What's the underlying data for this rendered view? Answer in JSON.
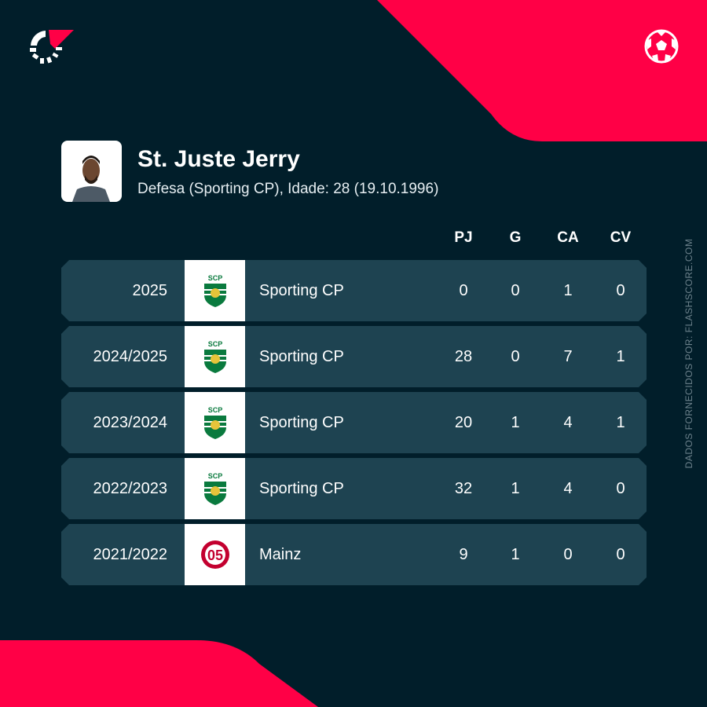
{
  "colors": {
    "background": "#011e2a",
    "accent": "#ff0046",
    "row": "#1e4351"
  },
  "icons": {
    "logo": "flashscore-logo",
    "sport": "football-icon"
  },
  "player": {
    "name": "St. Juste Jerry",
    "details": "Defesa (Sporting CP), Idade: 28 (19.10.1996)"
  },
  "table": {
    "headers": [
      "PJ",
      "G",
      "CA",
      "CV"
    ],
    "rows": [
      {
        "season": "2025",
        "team": "Sporting CP",
        "crest": "sporting-cp-crest",
        "pj": "0",
        "g": "0",
        "ca": "1",
        "cv": "0"
      },
      {
        "season": "2024/2025",
        "team": "Sporting CP",
        "crest": "sporting-cp-crest",
        "pj": "28",
        "g": "0",
        "ca": "7",
        "cv": "1"
      },
      {
        "season": "2023/2024",
        "team": "Sporting CP",
        "crest": "sporting-cp-crest",
        "pj": "20",
        "g": "1",
        "ca": "4",
        "cv": "1"
      },
      {
        "season": "2022/2023",
        "team": "Sporting CP",
        "crest": "sporting-cp-crest",
        "pj": "32",
        "g": "1",
        "ca": "4",
        "cv": "0"
      },
      {
        "season": "2021/2022",
        "team": "Mainz",
        "crest": "mainz-crest",
        "pj": "9",
        "g": "1",
        "ca": "0",
        "cv": "0"
      }
    ]
  },
  "credit": "DADOS FORNECIDOS POR: FLASHSCORE.COM"
}
